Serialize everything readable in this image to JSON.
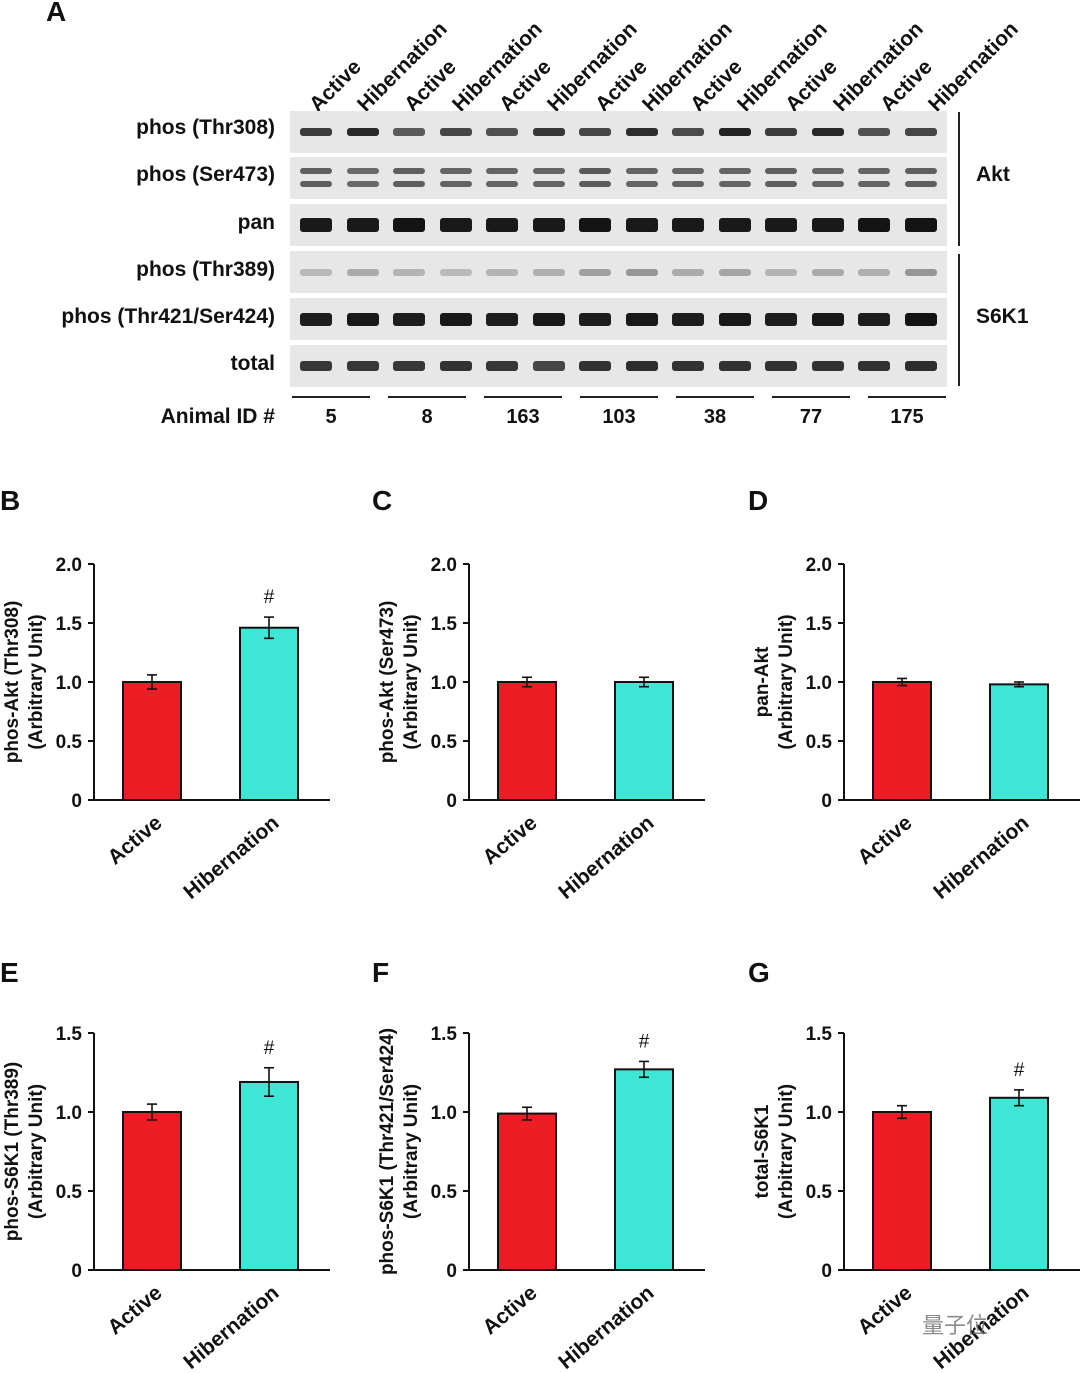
{
  "figure": {
    "panel_a": {
      "label": "A",
      "column_headers": [
        "Active",
        "Hibernation",
        "Active",
        "Hibernation",
        "Active",
        "Hibernation",
        "Active",
        "Hibernation",
        "Active",
        "Hibernation",
        "Active",
        "Hibernation",
        "Active",
        "Hibernation"
      ],
      "row_labels": [
        "phos (Thr308)",
        "phos (Ser473)",
        "pan",
        "phos (Thr389)",
        "phos (Thr421/Ser424)",
        "total"
      ],
      "group_labels": [
        {
          "name": "Akt"
        },
        {
          "name": "S6K1"
        }
      ],
      "animal_id_label": "Animal ID #",
      "animal_ids": [
        "5",
        "8",
        "163",
        "103",
        "38",
        "77",
        "175"
      ]
    },
    "watermark": "量子位"
  },
  "colors": {
    "active": "#ee1c24",
    "hibernation": "#3ee6d6",
    "axis": "#111111"
  },
  "chart_data": [
    {
      "panel": "B",
      "type": "bar",
      "categories": [
        "Active",
        "Hibernation"
      ],
      "values": [
        1.0,
        1.46
      ],
      "errors": [
        0.06,
        0.09
      ],
      "significance": [
        "",
        "#"
      ],
      "ylabel": [
        "phos-Akt (Thr308)",
        "(Arbitrary Unit)"
      ],
      "ylim": [
        0,
        2.0
      ],
      "yticks": [
        0,
        0.5,
        1.0,
        1.5,
        2.0
      ],
      "ytick_labels": [
        "0",
        "0.5",
        "1.0",
        "1.5",
        "2.0"
      ]
    },
    {
      "panel": "C",
      "type": "bar",
      "categories": [
        "Active",
        "Hibernation"
      ],
      "values": [
        1.0,
        1.0
      ],
      "errors": [
        0.04,
        0.04
      ],
      "significance": [
        "",
        ""
      ],
      "ylabel": [
        "phos-Akt (Ser473)",
        "(Arbitrary Unit)"
      ],
      "ylim": [
        0,
        2.0
      ],
      "yticks": [
        0,
        0.5,
        1.0,
        1.5,
        2.0
      ],
      "ytick_labels": [
        "0",
        "0.5",
        "1.0",
        "1.5",
        "2.0"
      ]
    },
    {
      "panel": "D",
      "type": "bar",
      "categories": [
        "Active",
        "Hibernation"
      ],
      "values": [
        1.0,
        0.98
      ],
      "errors": [
        0.03,
        0.02
      ],
      "significance": [
        "",
        ""
      ],
      "ylabel": [
        "pan-Akt",
        "(Arbitrary Unit)"
      ],
      "ylim": [
        0,
        2.0
      ],
      "yticks": [
        0,
        0.5,
        1.0,
        1.5,
        2.0
      ],
      "ytick_labels": [
        "0",
        "0.5",
        "1.0",
        "1.5",
        "2.0"
      ]
    },
    {
      "panel": "E",
      "type": "bar",
      "categories": [
        "Active",
        "Hibernation"
      ],
      "values": [
        1.0,
        1.19
      ],
      "errors": [
        0.05,
        0.09
      ],
      "significance": [
        "",
        "#"
      ],
      "ylabel": [
        "phos-S6K1 (Thr389)",
        "(Arbitrary Unit)"
      ],
      "ylim": [
        0,
        1.5
      ],
      "yticks": [
        0,
        0.5,
        1.0,
        1.5
      ],
      "ytick_labels": [
        "0",
        "0.5",
        "1.0",
        "1.5"
      ]
    },
    {
      "panel": "F",
      "type": "bar",
      "categories": [
        "Active",
        "Hibernation"
      ],
      "values": [
        0.99,
        1.27
      ],
      "errors": [
        0.04,
        0.05
      ],
      "significance": [
        "",
        "#"
      ],
      "ylabel": [
        "phos-S6K1 (Thr421/Ser424)",
        "(Arbitrary Unit)"
      ],
      "ylim": [
        0,
        1.5
      ],
      "yticks": [
        0,
        0.5,
        1.0,
        1.5
      ],
      "ytick_labels": [
        "0",
        "0.5",
        "1.0",
        "1.5"
      ]
    },
    {
      "panel": "G",
      "type": "bar",
      "categories": [
        "Active",
        "Hibernation"
      ],
      "values": [
        1.0,
        1.09
      ],
      "errors": [
        0.04,
        0.05
      ],
      "significance": [
        "",
        "#"
      ],
      "ylabel": [
        "total-S6K1",
        "(Arbitrary Unit)"
      ],
      "ylim": [
        0,
        1.5
      ],
      "yticks": [
        0,
        0.5,
        1.0,
        1.5
      ],
      "ytick_labels": [
        "0",
        "0.5",
        "1.0",
        "1.5"
      ]
    }
  ]
}
